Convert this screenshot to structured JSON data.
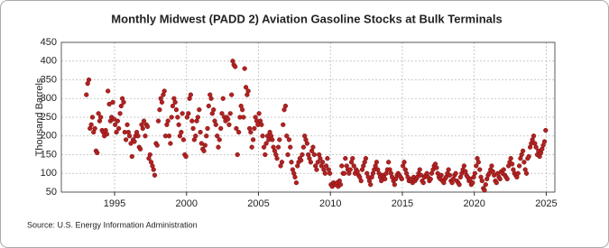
{
  "chart_data": {
    "type": "scatter",
    "title": "Monthly Midwest (PADD 2) Aviation Gasoline Stocks at Bulk Terminals",
    "y_label": "Thousand Barrels",
    "source": "Source: U.S. Energy Information Administration",
    "color": "#b22222",
    "grid": true,
    "xlim": [
      1991.3,
      2025.6
    ],
    "ylim": [
      50,
      450
    ],
    "xticks": [
      1995,
      2000,
      2005,
      2010,
      2015,
      2020,
      2025
    ],
    "yticks": [
      50,
      100,
      150,
      200,
      250,
      300,
      350,
      400,
      450
    ],
    "x": [
      1993.04,
      1993.13,
      1993.21,
      1993.29,
      1993.38,
      1993.46,
      1993.54,
      1993.63,
      1993.71,
      1993.79,
      1993.88,
      1993.96,
      1994.04,
      1994.13,
      1994.21,
      1994.29,
      1994.38,
      1994.46,
      1994.54,
      1994.63,
      1994.71,
      1994.79,
      1994.88,
      1994.96,
      1995.04,
      1995.13,
      1995.21,
      1995.29,
      1995.38,
      1995.46,
      1995.54,
      1995.63,
      1995.71,
      1995.79,
      1995.88,
      1995.96,
      1996.04,
      1996.13,
      1996.21,
      1996.29,
      1996.38,
      1996.46,
      1996.54,
      1996.63,
      1996.71,
      1996.79,
      1996.88,
      1996.96,
      1997.04,
      1997.13,
      1997.21,
      1997.29,
      1997.38,
      1997.46,
      1997.54,
      1997.63,
      1997.71,
      1997.79,
      1997.88,
      1997.96,
      1998.04,
      1998.13,
      1998.21,
      1998.29,
      1998.38,
      1998.46,
      1998.54,
      1998.63,
      1998.71,
      1998.79,
      1998.88,
      1998.96,
      1999.04,
      1999.13,
      1999.21,
      1999.29,
      1999.38,
      1999.46,
      1999.54,
      1999.63,
      1999.71,
      1999.79,
      1999.88,
      1999.96,
      2000.04,
      2000.13,
      2000.21,
      2000.29,
      2000.38,
      2000.46,
      2000.54,
      2000.63,
      2000.71,
      2000.79,
      2000.88,
      2000.96,
      2001.04,
      2001.13,
      2001.21,
      2001.29,
      2001.38,
      2001.46,
      2001.54,
      2001.63,
      2001.71,
      2001.79,
      2001.88,
      2001.96,
      2002.04,
      2002.13,
      2002.21,
      2002.29,
      2002.38,
      2002.46,
      2002.54,
      2002.63,
      2002.71,
      2002.79,
      2002.88,
      2002.96,
      2003.04,
      2003.13,
      2003.21,
      2003.29,
      2003.38,
      2003.46,
      2003.54,
      2003.63,
      2003.71,
      2003.79,
      2003.88,
      2003.96,
      2004.04,
      2004.13,
      2004.21,
      2004.29,
      2004.38,
      2004.46,
      2004.54,
      2004.63,
      2004.71,
      2004.79,
      2004.88,
      2004.96,
      2005.04,
      2005.13,
      2005.21,
      2005.29,
      2005.38,
      2005.46,
      2005.54,
      2005.63,
      2005.71,
      2005.79,
      2005.88,
      2005.96,
      2006.04,
      2006.13,
      2006.21,
      2006.29,
      2006.38,
      2006.46,
      2006.54,
      2006.63,
      2006.71,
      2006.79,
      2006.88,
      2006.96,
      2007.04,
      2007.13,
      2007.21,
      2007.29,
      2007.38,
      2007.46,
      2007.54,
      2007.63,
      2007.71,
      2007.79,
      2007.88,
      2007.96,
      2008.04,
      2008.13,
      2008.21,
      2008.29,
      2008.38,
      2008.46,
      2008.54,
      2008.63,
      2008.71,
      2008.79,
      2008.88,
      2008.96,
      2009.04,
      2009.13,
      2009.21,
      2009.29,
      2009.38,
      2009.46,
      2009.54,
      2009.63,
      2009.71,
      2009.79,
      2009.88,
      2009.96,
      2010.04,
      2010.13,
      2010.21,
      2010.29,
      2010.38,
      2010.46,
      2010.54,
      2010.63,
      2010.71,
      2010.79,
      2010.88,
      2010.96,
      2011.04,
      2011.13,
      2011.21,
      2011.29,
      2011.38,
      2011.46,
      2011.54,
      2011.63,
      2011.71,
      2011.79,
      2011.88,
      2011.96,
      2012.04,
      2012.13,
      2012.21,
      2012.29,
      2012.38,
      2012.46,
      2012.54,
      2012.63,
      2012.71,
      2012.79,
      2012.88,
      2012.96,
      2013.04,
      2013.13,
      2013.21,
      2013.29,
      2013.38,
      2013.46,
      2013.54,
      2013.63,
      2013.71,
      2013.79,
      2013.88,
      2013.96,
      2014.04,
      2014.13,
      2014.21,
      2014.29,
      2014.38,
      2014.46,
      2014.54,
      2014.63,
      2014.71,
      2014.79,
      2014.88,
      2014.96,
      2015.04,
      2015.13,
      2015.21,
      2015.29,
      2015.38,
      2015.46,
      2015.54,
      2015.63,
      2015.71,
      2015.79,
      2015.88,
      2015.96,
      2016.04,
      2016.13,
      2016.21,
      2016.29,
      2016.38,
      2016.46,
      2016.54,
      2016.63,
      2016.71,
      2016.79,
      2016.88,
      2016.96,
      2017.04,
      2017.13,
      2017.21,
      2017.29,
      2017.38,
      2017.46,
      2017.54,
      2017.63,
      2017.71,
      2017.79,
      2017.88,
      2017.96,
      2018.04,
      2018.13,
      2018.21,
      2018.29,
      2018.38,
      2018.46,
      2018.54,
      2018.63,
      2018.71,
      2018.79,
      2018.88,
      2018.96,
      2019.04,
      2019.13,
      2019.21,
      2019.29,
      2019.38,
      2019.46,
      2019.54,
      2019.63,
      2019.71,
      2019.79,
      2019.88,
      2019.96,
      2020.04,
      2020.13,
      2020.21,
      2020.29,
      2020.38,
      2020.46,
      2020.54,
      2020.63,
      2020.71,
      2020.79,
      2020.88,
      2020.96,
      2021.04,
      2021.13,
      2021.21,
      2021.29,
      2021.38,
      2021.46,
      2021.54,
      2021.63,
      2021.71,
      2021.79,
      2021.88,
      2021.96,
      2022.04,
      2022.13,
      2022.21,
      2022.29,
      2022.38,
      2022.46,
      2022.54,
      2022.63,
      2022.71,
      2022.79,
      2022.88,
      2022.96,
      2023.04,
      2023.13,
      2023.21,
      2023.29,
      2023.38,
      2023.46,
      2023.54,
      2023.63,
      2023.71,
      2023.79,
      2023.88,
      2023.96,
      2024.04,
      2024.13,
      2024.21,
      2024.29,
      2024.38,
      2024.46,
      2024.54,
      2024.63,
      2024.71,
      2024.79,
      2024.88,
      2024.96
    ],
    "values": [
      310,
      340,
      350,
      220,
      230,
      250,
      210,
      220,
      160,
      155,
      260,
      240,
      250,
      215,
      210,
      200,
      215,
      205,
      320,
      285,
      240,
      250,
      290,
      245,
      230,
      210,
      240,
      220,
      260,
      280,
      300,
      290,
      210,
      190,
      230,
      210,
      200,
      180,
      145,
      190,
      185,
      200,
      210,
      200,
      170,
      165,
      230,
      220,
      240,
      200,
      230,
      225,
      140,
      150,
      130,
      120,
      110,
      95,
      180,
      175,
      240,
      270,
      300,
      290,
      310,
      320,
      200,
      230,
      240,
      200,
      180,
      250,
      280,
      300,
      290,
      270,
      250,
      230,
      200,
      210,
      260,
      190,
      150,
      145,
      250,
      260,
      300,
      310,
      240,
      220,
      190,
      200,
      240,
      250,
      270,
      210,
      180,
      165,
      160,
      175,
      200,
      220,
      280,
      310,
      300,
      260,
      270,
      240,
      230,
      200,
      170,
      190,
      220,
      260,
      300,
      250,
      240,
      250,
      245,
      230,
      260,
      310,
      400,
      390,
      385,
      220,
      150,
      210,
      250,
      280,
      270,
      250,
      380,
      330,
      310,
      320,
      220,
      210,
      170,
      190,
      220,
      250,
      240,
      230,
      260,
      240,
      230,
      200,
      170,
      150,
      180,
      200,
      190,
      210,
      200,
      190,
      170,
      160,
      150,
      140,
      170,
      190,
      120,
      130,
      230,
      270,
      280,
      200,
      150,
      190,
      170,
      130,
      110,
      100,
      90,
      75,
      120,
      130,
      140,
      135,
      150,
      170,
      200,
      190,
      180,
      150,
      140,
      130,
      160,
      170,
      150,
      120,
      110,
      130,
      150,
      140,
      120,
      130,
      110,
      100,
      120,
      140,
      110,
      100,
      70,
      65,
      75,
      70,
      70,
      75,
      65,
      80,
      70,
      120,
      100,
      100,
      140,
      120,
      110,
      100,
      110,
      130,
      140,
      120,
      100,
      110,
      105,
      95,
      90,
      80,
      110,
      120,
      130,
      140,
      100,
      90,
      80,
      70,
      90,
      100,
      110,
      120,
      130,
      110,
      100,
      90,
      80,
      95,
      90,
      85,
      100,
      110,
      130,
      110,
      100,
      90,
      80,
      70,
      85,
      95,
      100,
      95,
      90,
      85,
      120,
      130,
      110,
      100,
      90,
      80,
      80,
      85,
      75,
      90,
      80,
      85,
      90,
      100,
      110,
      95,
      80,
      75,
      90,
      95,
      100,
      90,
      80,
      85,
      100,
      110,
      120,
      125,
      115,
      100,
      90,
      85,
      95,
      80,
      75,
      85,
      90,
      100,
      110,
      95,
      80,
      75,
      85,
      95,
      100,
      80,
      75,
      70,
      90,
      100,
      110,
      120,
      105,
      95,
      90,
      80,
      85,
      70,
      75,
      90,
      100,
      120,
      140,
      130,
      110,
      90,
      80,
      60,
      55,
      70,
      85,
      95,
      100,
      110,
      120,
      105,
      95,
      80,
      75,
      100,
      90,
      85,
      105,
      100,
      110,
      95,
      90,
      85,
      120,
      130,
      140,
      125,
      110,
      100,
      95,
      90,
      100,
      120,
      140,
      150,
      160,
      130,
      110,
      100,
      140,
      145,
      170,
      180,
      190,
      200,
      180,
      170,
      150,
      160,
      145,
      155,
      165,
      175,
      185,
      215
    ]
  }
}
